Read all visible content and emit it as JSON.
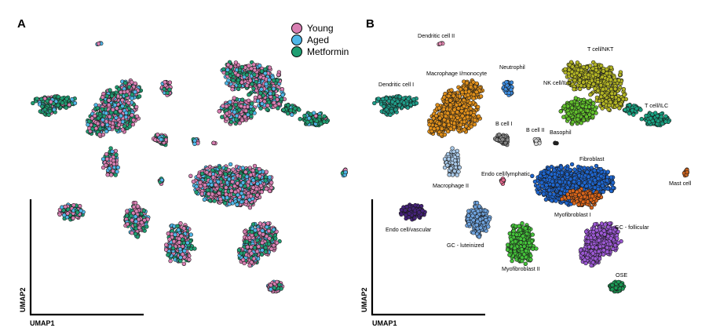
{
  "figure": {
    "panel_a_letter": "A",
    "panel_b_letter": "B",
    "axis_x_label": "UMAP1",
    "axis_y_label": "UMAP2"
  },
  "chart_data": [
    {
      "panel": "A",
      "type": "scatter",
      "xlabel": "UMAP1",
      "ylabel": "UMAP2",
      "legend_position": "top-right",
      "series": [
        {
          "name": "Young",
          "color": "#d87fb2"
        },
        {
          "name": "Aged",
          "color": "#4fb7e8"
        },
        {
          "name": "Metformin",
          "color": "#1f9e72"
        }
      ]
    },
    {
      "panel": "B",
      "type": "scatter",
      "xlabel": "UMAP1",
      "ylabel": "UMAP2",
      "clusters": [
        {
          "name": "Dendritic cell II",
          "color": "#e58bb4"
        },
        {
          "name": "Macrophage I/monocyte",
          "color": "#e08f1a"
        },
        {
          "name": "Neutrophil",
          "color": "#3e8de0"
        },
        {
          "name": "T cell/NKT",
          "color": "#b3b524"
        },
        {
          "name": "Dendritic cell I",
          "color": "#1f9e8a"
        },
        {
          "name": "NK cell/ILC",
          "color": "#62c12c"
        },
        {
          "name": "T cell/ILC",
          "color": "#19a383"
        },
        {
          "name": "B cell I",
          "color": "#8a8a8a"
        },
        {
          "name": "B cell II",
          "color": "#d6d6d6"
        },
        {
          "name": "Basophil",
          "color": "#222222"
        },
        {
          "name": "Fibroblast",
          "color": "#1e66d0"
        },
        {
          "name": "Macrophage II",
          "color": "#a9c9e8"
        },
        {
          "name": "Endo cell/lymphatic",
          "color": "#e36a8e"
        },
        {
          "name": "Mast cell",
          "color": "#c8631f"
        },
        {
          "name": "Myofibroblast I",
          "color": "#d9651b"
        },
        {
          "name": "Endo cell/vascular",
          "color": "#45237a"
        },
        {
          "name": "GC - follicular",
          "color": "#9c58d4"
        },
        {
          "name": "GC - luteinized",
          "color": "#6ea2dd"
        },
        {
          "name": "Myofibroblast II",
          "color": "#44c23a"
        },
        {
          "name": "OSE",
          "color": "#1b9a55"
        }
      ]
    }
  ]
}
